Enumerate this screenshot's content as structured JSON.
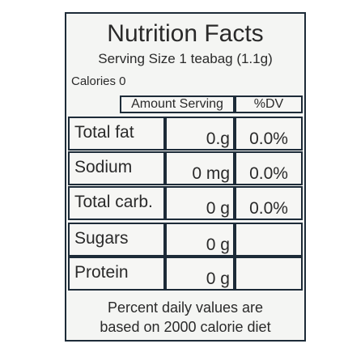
{
  "header": {
    "title": "Nutrition Facts",
    "serving_size": "Serving Size 1 teabag (1.1g)",
    "calories": "Calories 0"
  },
  "table": {
    "columns": [
      "Amount Serving",
      "%DV"
    ],
    "rows": [
      [
        "Total fat",
        "0.g",
        "0.0%"
      ],
      [
        "Sodium",
        "0 mg",
        "0.0%"
      ],
      [
        "Total carb.",
        "0 g",
        "0.0%"
      ],
      [
        "Sugars",
        "0 g"
      ],
      [
        "Protein",
        "0 g"
      ]
    ]
  },
  "footer": [
    "Percent daily values are",
    "based on 2000 calorie diet"
  ]
}
